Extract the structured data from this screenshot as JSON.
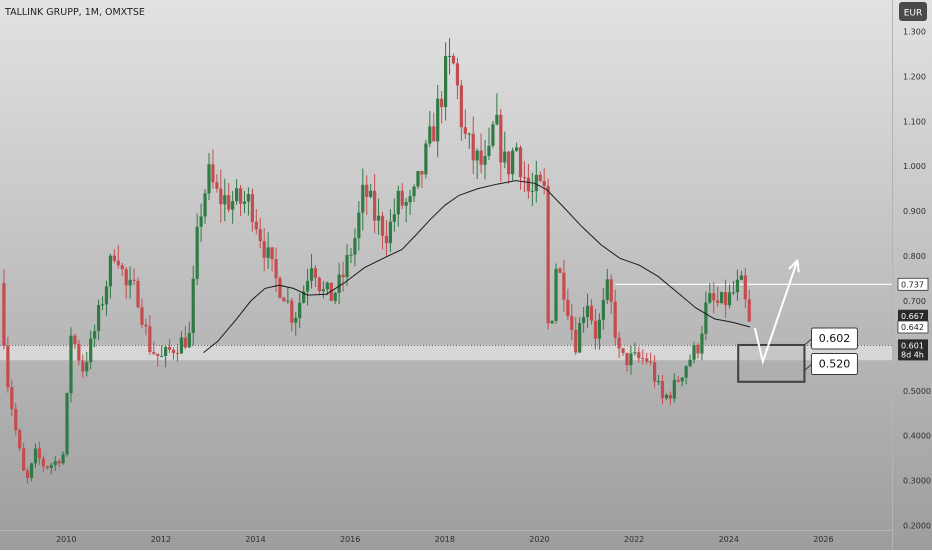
{
  "header": {
    "title": "TALLINK GRUPP, 1M, OMXTSE"
  },
  "currency_button": "EUR",
  "colors": {
    "bg_top": "#e2e2e2",
    "bg_bottom": "#9d9d9d",
    "up": "#2f7a45",
    "down": "#c44c4e",
    "ma": "#1c1c1c",
    "support_band": "#ffffff",
    "resistance_line": "#ffffff"
  },
  "chart_data": {
    "type": "candlestick",
    "title": "TALLINK GRUPP, 1M, OMXTSE",
    "ylim": [
      0.19,
      1.37
    ],
    "xlim": [
      2008.6,
      2027.45
    ],
    "y_ticks": [
      "0.2000",
      "0.3000",
      "0.4000",
      "0.5000",
      "0.600",
      "0.700",
      "0.800",
      "0.900",
      "1.000",
      "1.100",
      "1.200",
      "1.300"
    ],
    "x_ticks": [
      "2010",
      "2012",
      "2014",
      "2016",
      "2018",
      "2020",
      "2022",
      "2024",
      "2026"
    ],
    "price_labels": [
      {
        "text": "0.737",
        "value": 0.737,
        "style": "outline"
      },
      {
        "text": "0.667",
        "value": 0.667,
        "style": "dark"
      },
      {
        "text": "0.642",
        "value": 0.642,
        "style": "outline"
      },
      {
        "text": "0.601",
        "value": 0.601,
        "style": "dark"
      },
      {
        "text": "8d 4h",
        "value": 0.581,
        "style": "dark"
      }
    ],
    "annotations": {
      "callout_upper": "0.602",
      "callout_lower": "0.520",
      "resistance_level": 0.737,
      "support_band": [
        0.568,
        0.602
      ],
      "box": {
        "x": [
          2024.2,
          2025.6
        ],
        "y": [
          0.52,
          0.602
        ]
      },
      "projection": [
        [
          2024.55,
          0.64
        ],
        [
          2024.72,
          0.565
        ],
        [
          2025.45,
          0.79
        ]
      ]
    },
    "anchors": [
      [
        2008.6,
        0.74
      ],
      [
        2008.75,
        0.53
      ],
      [
        2008.95,
        0.4
      ],
      [
        2009.15,
        0.29
      ],
      [
        2009.35,
        0.36
      ],
      [
        2009.55,
        0.33
      ],
      [
        2009.75,
        0.34
      ],
      [
        2009.95,
        0.36
      ],
      [
        2010.1,
        0.63
      ],
      [
        2010.35,
        0.55
      ],
      [
        2010.55,
        0.61
      ],
      [
        2010.8,
        0.72
      ],
      [
        2011.05,
        0.83
      ],
      [
        2011.25,
        0.73
      ],
      [
        2011.5,
        0.72
      ],
      [
        2011.75,
        0.6
      ],
      [
        2012.0,
        0.57
      ],
      [
        2012.3,
        0.6
      ],
      [
        2012.6,
        0.62
      ],
      [
        2012.8,
        0.88
      ],
      [
        2013.0,
        0.98
      ],
      [
        2013.2,
        0.93
      ],
      [
        2013.6,
        0.92
      ],
      [
        2013.9,
        0.92
      ],
      [
        2014.1,
        0.85
      ],
      [
        2014.4,
        0.75
      ],
      [
        2014.6,
        0.72
      ],
      [
        2014.8,
        0.66
      ],
      [
        2015.0,
        0.72
      ],
      [
        2015.2,
        0.8
      ],
      [
        2015.4,
        0.72
      ],
      [
        2015.6,
        0.71
      ],
      [
        2015.8,
        0.74
      ],
      [
        2016.1,
        0.84
      ],
      [
        2016.3,
        0.95
      ],
      [
        2016.55,
        0.88
      ],
      [
        2016.8,
        0.85
      ],
      [
        2017.0,
        0.92
      ],
      [
        2017.3,
        0.91
      ],
      [
        2017.6,
        1.02
      ],
      [
        2017.8,
        1.1
      ],
      [
        2018.05,
        1.22
      ],
      [
        2018.2,
        1.22
      ],
      [
        2018.4,
        1.07
      ],
      [
        2018.6,
        1.02
      ],
      [
        2018.9,
        0.99
      ],
      [
        2019.05,
        1.1
      ],
      [
        2019.3,
        0.99
      ],
      [
        2019.5,
        1.05
      ],
      [
        2019.8,
        0.93
      ],
      [
        2019.95,
        0.95
      ],
      [
        2020.1,
        0.94
      ],
      [
        2020.2,
        0.59
      ],
      [
        2020.35,
        0.78
      ],
      [
        2020.55,
        0.72
      ],
      [
        2020.75,
        0.6
      ],
      [
        2021.0,
        0.71
      ],
      [
        2021.2,
        0.62
      ],
      [
        2021.45,
        0.73
      ],
      [
        2021.7,
        0.57
      ],
      [
        2021.95,
        0.57
      ],
      [
        2022.3,
        0.57
      ],
      [
        2022.6,
        0.48
      ],
      [
        2022.8,
        0.5
      ],
      [
        2023.1,
        0.56
      ],
      [
        2023.35,
        0.6
      ],
      [
        2023.55,
        0.7
      ],
      [
        2023.8,
        0.69
      ],
      [
        2024.05,
        0.71
      ],
      [
        2024.25,
        0.74
      ],
      [
        2024.4,
        0.667
      ],
      [
        2024.5,
        0.601
      ]
    ],
    "ma_points": [
      [
        2012.9,
        0.585
      ],
      [
        2013.2,
        0.61
      ],
      [
        2013.6,
        0.66
      ],
      [
        2013.9,
        0.7
      ],
      [
        2014.2,
        0.728
      ],
      [
        2014.5,
        0.735
      ],
      [
        2014.8,
        0.728
      ],
      [
        2015.1,
        0.713
      ],
      [
        2015.5,
        0.715
      ],
      [
        2015.9,
        0.742
      ],
      [
        2016.3,
        0.774
      ],
      [
        2016.7,
        0.795
      ],
      [
        2017.1,
        0.815
      ],
      [
        2017.4,
        0.848
      ],
      [
        2017.7,
        0.882
      ],
      [
        2018.0,
        0.913
      ],
      [
        2018.3,
        0.935
      ],
      [
        2018.7,
        0.95
      ],
      [
        2019.1,
        0.96
      ],
      [
        2019.5,
        0.968
      ],
      [
        2019.9,
        0.962
      ],
      [
        2020.15,
        0.948
      ],
      [
        2020.5,
        0.91
      ],
      [
        2020.9,
        0.865
      ],
      [
        2021.3,
        0.825
      ],
      [
        2021.7,
        0.795
      ],
      [
        2022.1,
        0.78
      ],
      [
        2022.5,
        0.755
      ],
      [
        2022.9,
        0.72
      ],
      [
        2023.3,
        0.685
      ],
      [
        2023.7,
        0.66
      ],
      [
        2024.1,
        0.652
      ],
      [
        2024.45,
        0.642
      ]
    ]
  }
}
